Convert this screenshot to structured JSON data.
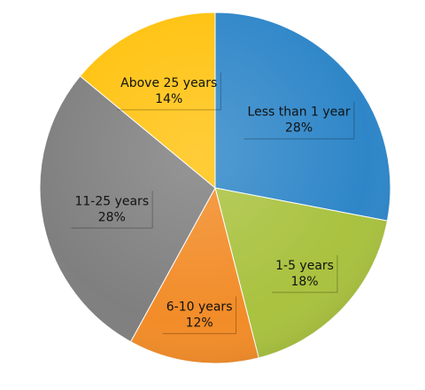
{
  "chart_data": {
    "type": "pie",
    "title": "",
    "legend": "none",
    "start_angle_deg": 0,
    "direction": "clockwise",
    "slices": [
      {
        "label": "Less than 1 year",
        "value": 28,
        "value_label": "28%",
        "color": "#2E86C8"
      },
      {
        "label": "1-5 years",
        "value": 18,
        "value_label": "18%",
        "color": "#A9C23F"
      },
      {
        "label": "6-10 years",
        "value": 12,
        "value_label": "12%",
        "color": "#F28C28"
      },
      {
        "label": "11-25 years",
        "value": 28,
        "value_label": "28%",
        "color": "#7F7F7F"
      },
      {
        "label": "Above 25 years",
        "value": 14,
        "value_label": "14%",
        "color": "#FFC20E"
      }
    ]
  }
}
